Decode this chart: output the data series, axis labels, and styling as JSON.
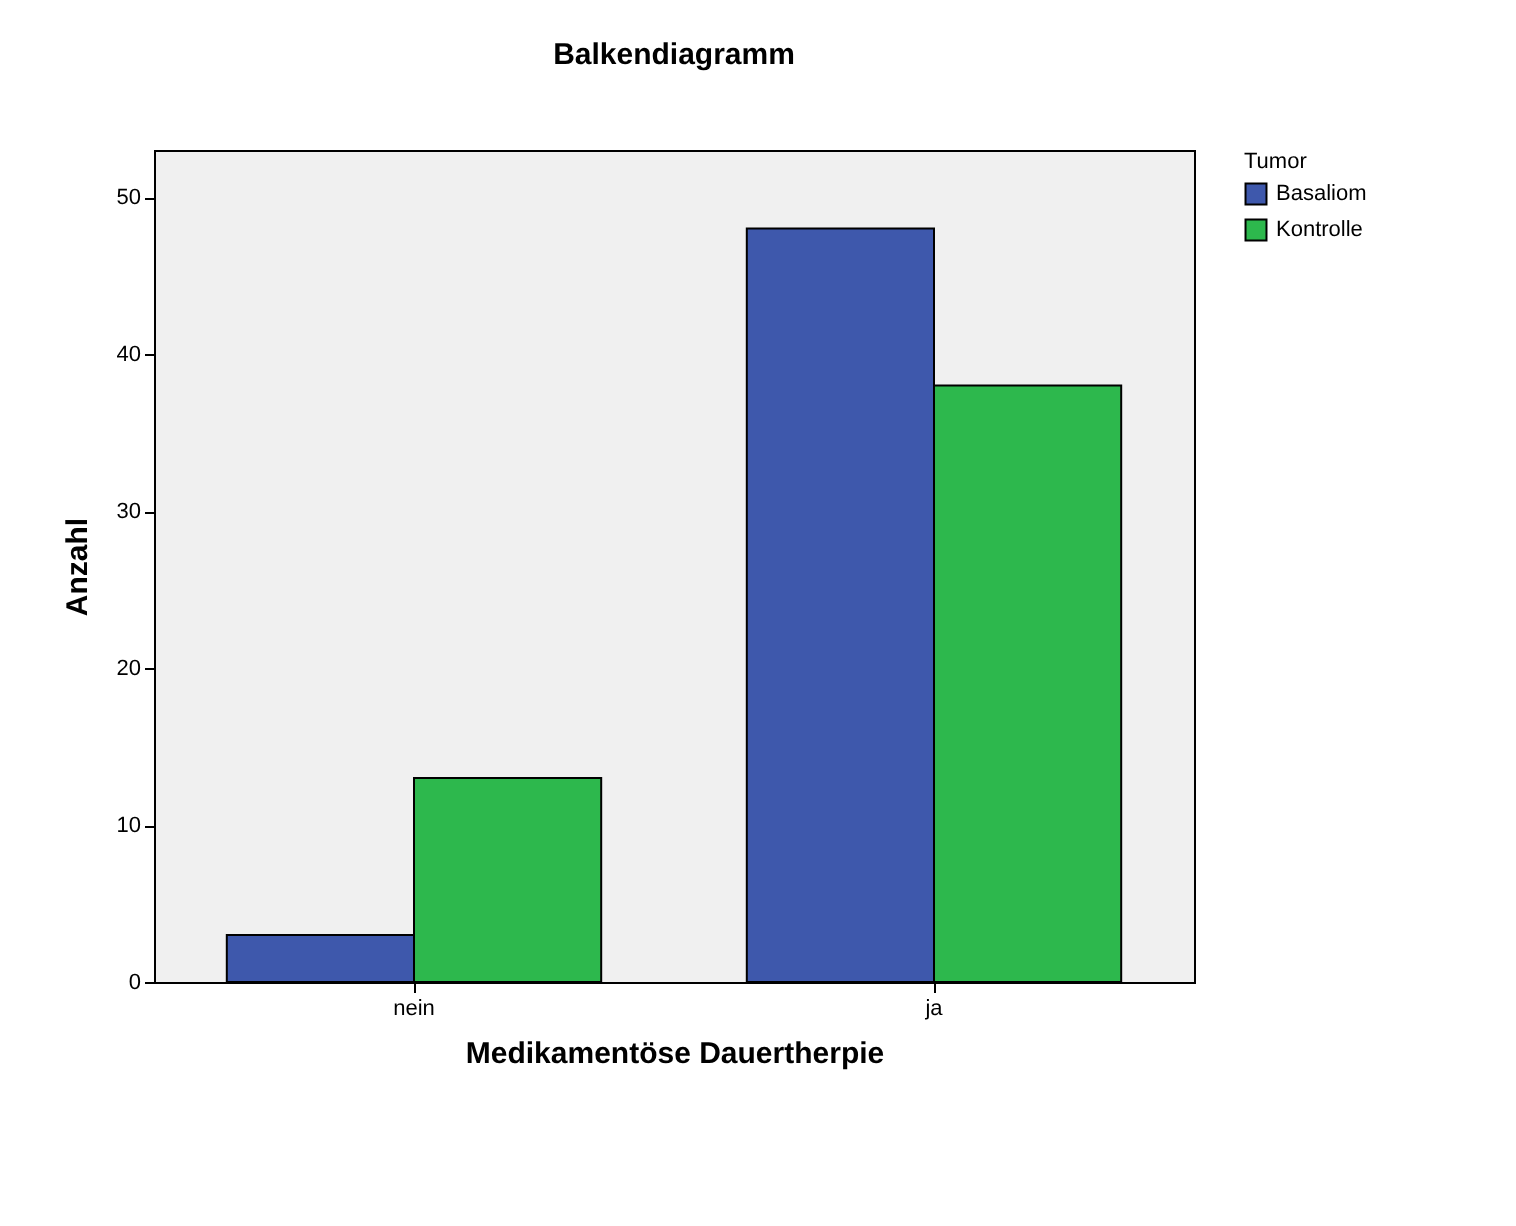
{
  "chart_data": {
    "type": "bar",
    "title": "Balkendiagramm",
    "xlabel": "Medikamentöse Dauertherpie",
    "ylabel": "Anzahl",
    "legend_title": "Tumor",
    "categories": [
      "nein",
      "ja"
    ],
    "series": [
      {
        "name": "Basaliom",
        "color": "#3e58ac",
        "values": [
          3,
          48
        ]
      },
      {
        "name": "Kontrolle",
        "color": "#2db84d",
        "values": [
          13,
          38
        ]
      }
    ],
    "ylim": [
      0,
      53
    ],
    "yticks": [
      0,
      10,
      20,
      30,
      40,
      50
    ],
    "grid": false,
    "legend": "top right"
  }
}
